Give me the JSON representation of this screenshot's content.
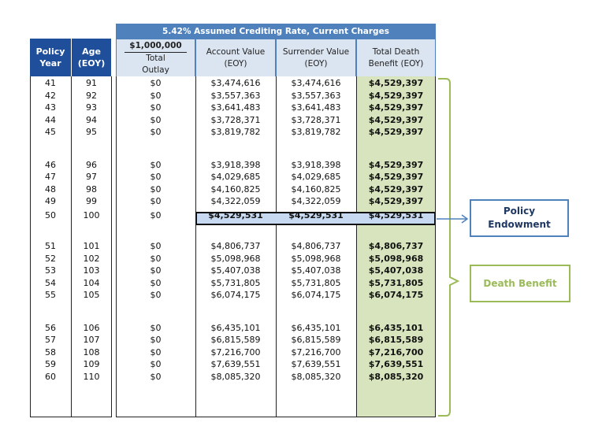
{
  "banner": "5.42% Assumed Crediting Rate, Current Charges",
  "columns": {
    "policy_year": [
      "Policy",
      "Year"
    ],
    "age": [
      "Age",
      "(EOY)"
    ],
    "outlay_amount": "$1,000,000",
    "outlay": [
      "Total",
      "Outlay"
    ],
    "account_value": [
      "Account Value",
      "(EOY)"
    ],
    "surrender_value": [
      "Surrender Value",
      "(EOY)"
    ],
    "death_benefit": [
      "Total Death",
      "Benefit (EOY)"
    ]
  },
  "rows": [
    {
      "year": "41",
      "age": "91",
      "outlay": "$0",
      "av": "$3,474,616",
      "sv": "$3,474,616",
      "db": "$4,529,397"
    },
    {
      "year": "42",
      "age": "92",
      "outlay": "$0",
      "av": "$3,557,363",
      "sv": "$3,557,363",
      "db": "$4,529,397"
    },
    {
      "year": "43",
      "age": "93",
      "outlay": "$0",
      "av": "$3,641,483",
      "sv": "$3,641,483",
      "db": "$4,529,397"
    },
    {
      "year": "44",
      "age": "94",
      "outlay": "$0",
      "av": "$3,728,371",
      "sv": "$3,728,371",
      "db": "$4,529,397"
    },
    {
      "year": "45",
      "age": "95",
      "outlay": "$0",
      "av": "$3,819,782",
      "sv": "$3,819,782",
      "db": "$4,529,397"
    },
    {
      "year": "46",
      "age": "96",
      "outlay": "$0",
      "av": "$3,918,398",
      "sv": "$3,918,398",
      "db": "$4,529,397"
    },
    {
      "year": "47",
      "age": "97",
      "outlay": "$0",
      "av": "$4,029,685",
      "sv": "$4,029,685",
      "db": "$4,529,397"
    },
    {
      "year": "48",
      "age": "98",
      "outlay": "$0",
      "av": "$4,160,825",
      "sv": "$4,160,825",
      "db": "$4,529,397"
    },
    {
      "year": "49",
      "age": "99",
      "outlay": "$0",
      "av": "$4,322,059",
      "sv": "$4,322,059",
      "db": "$4,529,397"
    },
    {
      "year": "50",
      "age": "100",
      "outlay": "$0",
      "av": "$4,529,531",
      "sv": "$4,529,531",
      "db": "$4,529,531",
      "highlight": true
    },
    {
      "year": "51",
      "age": "101",
      "outlay": "$0",
      "av": "$4,806,737",
      "sv": "$4,806,737",
      "db": "$4,806,737"
    },
    {
      "year": "52",
      "age": "102",
      "outlay": "$0",
      "av": "$5,098,968",
      "sv": "$5,098,968",
      "db": "$5,098,968"
    },
    {
      "year": "53",
      "age": "103",
      "outlay": "$0",
      "av": "$5,407,038",
      "sv": "$5,407,038",
      "db": "$5,407,038"
    },
    {
      "year": "54",
      "age": "104",
      "outlay": "$0",
      "av": "$5,731,805",
      "sv": "$5,731,805",
      "db": "$5,731,805"
    },
    {
      "year": "55",
      "age": "105",
      "outlay": "$0",
      "av": "$6,074,175",
      "sv": "$6,074,175",
      "db": "$6,074,175"
    },
    {
      "year": "56",
      "age": "106",
      "outlay": "$0",
      "av": "$6,435,101",
      "sv": "$6,435,101",
      "db": "$6,435,101"
    },
    {
      "year": "57",
      "age": "107",
      "outlay": "$0",
      "av": "$6,815,589",
      "sv": "$6,815,589",
      "db": "$6,815,589"
    },
    {
      "year": "58",
      "age": "108",
      "outlay": "$0",
      "av": "$7,216,700",
      "sv": "$7,216,700",
      "db": "$7,216,700"
    },
    {
      "year": "59",
      "age": "109",
      "outlay": "$0",
      "av": "$7,639,551",
      "sv": "$7,639,551",
      "db": "$7,639,551"
    },
    {
      "year": "60",
      "age": "110",
      "outlay": "$0",
      "av": "$8,085,320",
      "sv": "$8,085,320",
      "db": "$8,085,320"
    }
  ],
  "callouts": {
    "policy_endowment": [
      "Policy",
      "Endowment"
    ],
    "death_benefit": "Death Benefit"
  },
  "colors": {
    "header_navy": "#1f4e9a",
    "banner_blue": "#4f81bd",
    "subheader_light_blue": "#dbe5f1",
    "death_benefit_green": "#d7e4bd",
    "highlight_blue": "#c6d9f1",
    "callout_blue": "#4f81bd",
    "callout_green": "#9bbb59"
  }
}
